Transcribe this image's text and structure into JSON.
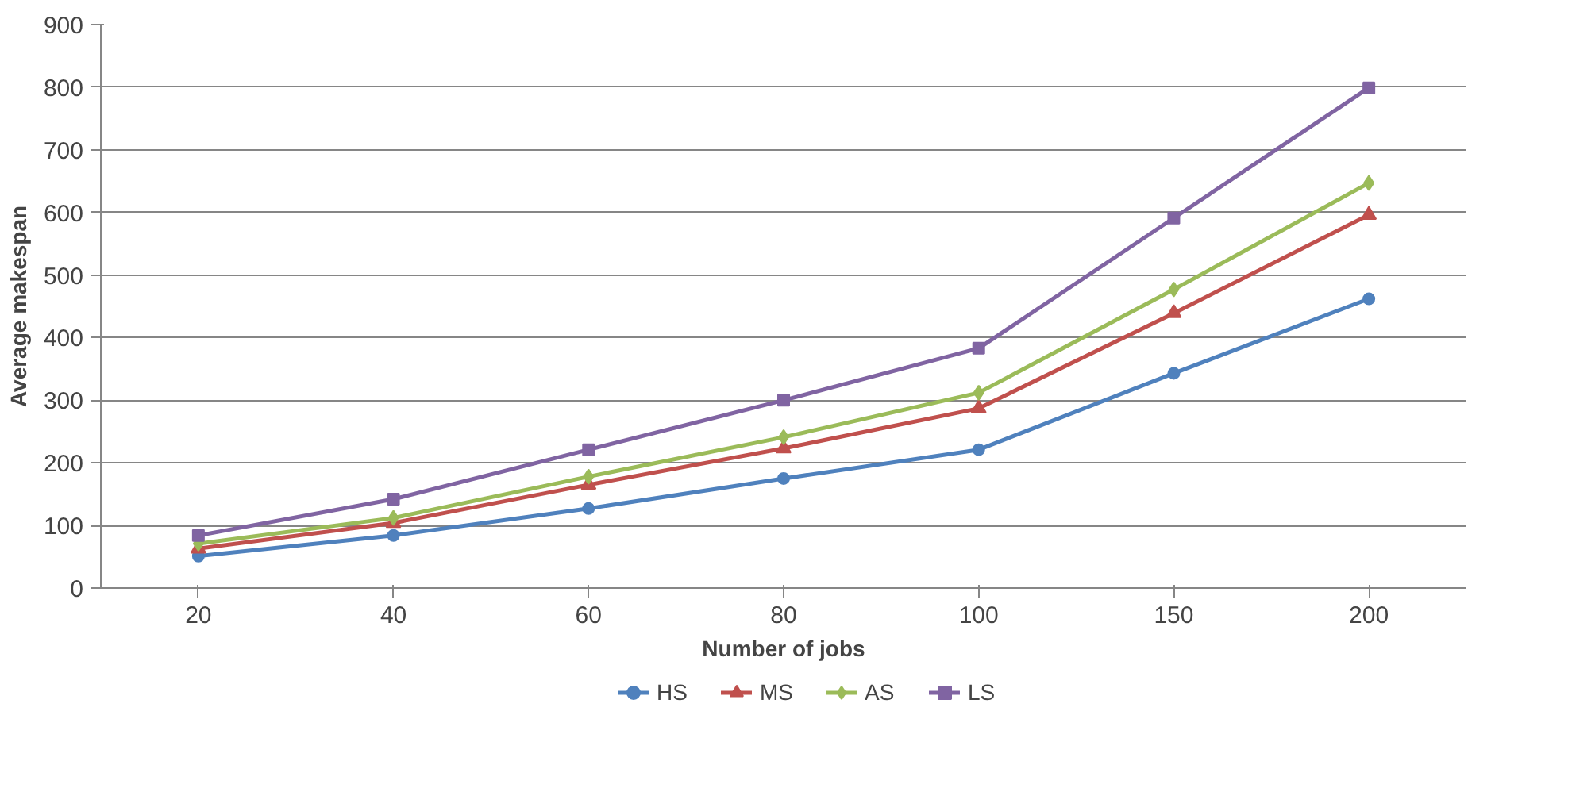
{
  "chart_data": {
    "type": "line",
    "xlabel": "Number of jobs",
    "ylabel": "Average makespan",
    "categories": [
      "20",
      "40",
      "60",
      "80",
      "100",
      "150",
      "200"
    ],
    "ylim": [
      0,
      900
    ],
    "yticks": [
      0,
      100,
      200,
      300,
      400,
      500,
      600,
      700,
      800,
      900
    ],
    "grid": "y",
    "legend": "bottom",
    "line_style": "solid",
    "series": [
      {
        "name": "HS",
        "color": "#4f81bd",
        "marker": "circle",
        "values": [
          51,
          84,
          127,
          175,
          221,
          343,
          462
        ]
      },
      {
        "name": "MS",
        "color": "#c0504d",
        "marker": "triangle",
        "values": [
          63,
          104,
          165,
          223,
          287,
          439,
          596
        ]
      },
      {
        "name": "AS",
        "color": "#9bbb59",
        "marker": "diamond",
        "values": [
          71,
          112,
          178,
          241,
          312,
          477,
          647
        ]
      },
      {
        "name": "LS",
        "color": "#8064a2",
        "marker": "square",
        "values": [
          84,
          142,
          221,
          300,
          383,
          591,
          799
        ]
      }
    ]
  }
}
